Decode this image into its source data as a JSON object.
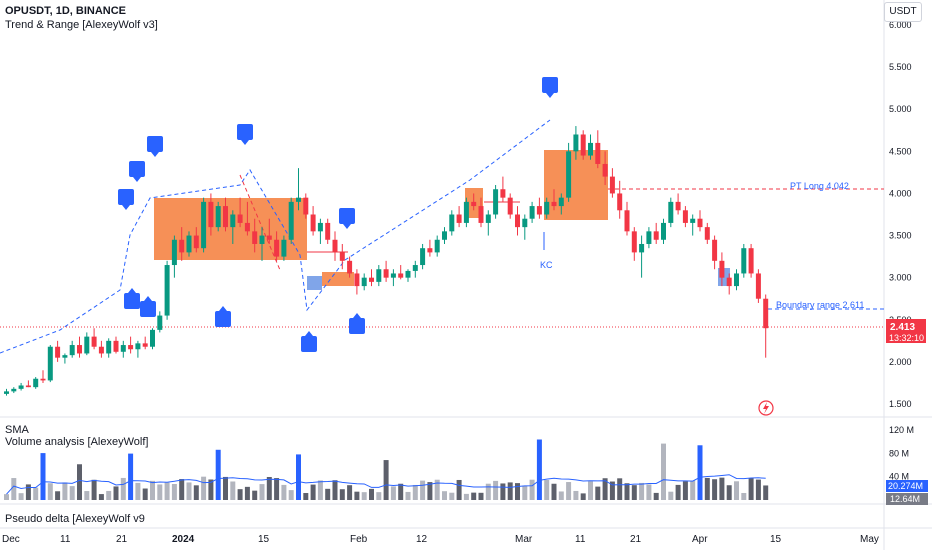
{
  "header": {
    "symbol_line": "OPUSDT, 1D, BINANCE",
    "indicator_line": "Trend & Range [AlexeyWolf v3]",
    "currency_button": "USDT"
  },
  "lower_panes": {
    "sma_label": "SMA",
    "volume_label": "Volume analysis [AlexeyWolf]",
    "delta_label": "Pseudo delta [AlexeyWolf v9"
  },
  "price_axis": {
    "ticks": [
      "6.000",
      "5.500",
      "5.000",
      "4.500",
      "4.000",
      "3.500",
      "3.000",
      "2.500",
      "2.000",
      "1.500"
    ],
    "last_price": "2.413",
    "countdown": "13:32:10",
    "last_price_color": "#f23645"
  },
  "volume_axis": {
    "ticks": [
      "120 M",
      "80 M",
      "40 M"
    ],
    "sma_value": "20.274M",
    "volume_value": "12.64M",
    "sma_color": "#2962ff"
  },
  "time_axis": {
    "ticks": [
      "Dec",
      "11",
      "21",
      "2024",
      "15",
      "Feb",
      "12",
      "Mar",
      "11",
      "21",
      "Apr",
      "15",
      "May"
    ]
  },
  "annotations": {
    "pt_long": "PT Long 4.042",
    "boundary": "Boundary range 2.611",
    "kc": "KC"
  },
  "colors": {
    "up": "#089981",
    "down": "#f23645",
    "range_box": "#f57c3a",
    "signal": "#2962ff"
  },
  "chart_data": {
    "type": "candlestick",
    "x_range": [
      "Dec",
      "May"
    ],
    "y_range": [
      1.4,
      6.1
    ],
    "log_scale": false,
    "grid": false,
    "ohlc_approx": [
      [
        1.62,
        1.68,
        1.6,
        1.65
      ],
      [
        1.65,
        1.7,
        1.63,
        1.68
      ],
      [
        1.68,
        1.75,
        1.66,
        1.72
      ],
      [
        1.72,
        1.78,
        1.7,
        1.7
      ],
      [
        1.7,
        1.82,
        1.68,
        1.8
      ],
      [
        1.8,
        1.9,
        1.75,
        1.78
      ],
      [
        1.78,
        2.2,
        1.76,
        2.18
      ],
      [
        2.18,
        2.25,
        2.0,
        2.05
      ],
      [
        2.05,
        2.1,
        1.98,
        2.08
      ],
      [
        2.08,
        2.25,
        2.05,
        2.2
      ],
      [
        2.2,
        2.3,
        2.05,
        2.1
      ],
      [
        2.1,
        2.35,
        2.08,
        2.3
      ],
      [
        2.3,
        2.4,
        2.15,
        2.18
      ],
      [
        2.18,
        2.25,
        2.05,
        2.1
      ],
      [
        2.1,
        2.28,
        2.05,
        2.25
      ],
      [
        2.25,
        2.3,
        2.1,
        2.12
      ],
      [
        2.12,
        2.25,
        2.05,
        2.2
      ],
      [
        2.2,
        2.3,
        2.1,
        2.15
      ],
      [
        2.15,
        2.25,
        2.05,
        2.22
      ],
      [
        2.22,
        2.3,
        2.15,
        2.18
      ],
      [
        2.18,
        2.4,
        2.15,
        2.38
      ],
      [
        2.38,
        2.6,
        2.35,
        2.55
      ],
      [
        2.55,
        3.2,
        2.5,
        3.15
      ],
      [
        3.15,
        3.5,
        3.0,
        3.45
      ],
      [
        3.45,
        3.6,
        3.2,
        3.3
      ],
      [
        3.3,
        3.55,
        3.25,
        3.5
      ],
      [
        3.5,
        3.6,
        3.3,
        3.35
      ],
      [
        3.35,
        3.95,
        3.3,
        3.9
      ],
      [
        3.9,
        4.0,
        3.5,
        3.6
      ],
      [
        3.6,
        3.9,
        3.55,
        3.85
      ],
      [
        3.85,
        3.95,
        3.55,
        3.6
      ],
      [
        3.6,
        3.8,
        3.4,
        3.75
      ],
      [
        3.75,
        3.95,
        3.6,
        3.65
      ],
      [
        3.65,
        3.9,
        3.5,
        3.55
      ],
      [
        3.55,
        3.7,
        3.3,
        3.4
      ],
      [
        3.4,
        3.6,
        3.2,
        3.5
      ],
      [
        3.5,
        3.7,
        3.4,
        3.45
      ],
      [
        3.45,
        3.55,
        3.2,
        3.25
      ],
      [
        3.25,
        3.5,
        3.2,
        3.45
      ],
      [
        3.45,
        3.95,
        3.4,
        3.9
      ],
      [
        3.9,
        4.3,
        3.8,
        3.95
      ],
      [
        3.95,
        4.0,
        3.7,
        3.75
      ],
      [
        3.75,
        3.85,
        3.5,
        3.55
      ],
      [
        3.55,
        3.7,
        3.4,
        3.65
      ],
      [
        3.65,
        3.7,
        3.4,
        3.45
      ],
      [
        3.45,
        3.55,
        3.2,
        3.3
      ],
      [
        3.3,
        3.4,
        3.1,
        3.2
      ],
      [
        3.2,
        3.25,
        3.0,
        3.05
      ],
      [
        3.05,
        3.1,
        2.8,
        2.9
      ],
      [
        2.9,
        3.05,
        2.85,
        3.0
      ],
      [
        3.0,
        3.1,
        2.9,
        2.95
      ],
      [
        2.95,
        3.15,
        2.9,
        3.1
      ],
      [
        3.1,
        3.2,
        2.95,
        3.0
      ],
      [
        3.0,
        3.1,
        2.9,
        3.05
      ],
      [
        3.05,
        3.15,
        2.98,
        3.0
      ],
      [
        3.0,
        3.1,
        2.95,
        3.08
      ],
      [
        3.08,
        3.2,
        3.0,
        3.15
      ],
      [
        3.15,
        3.4,
        3.1,
        3.35
      ],
      [
        3.35,
        3.45,
        3.25,
        3.3
      ],
      [
        3.3,
        3.5,
        3.25,
        3.45
      ],
      [
        3.45,
        3.6,
        3.4,
        3.55
      ],
      [
        3.55,
        3.8,
        3.5,
        3.75
      ],
      [
        3.75,
        3.85,
        3.6,
        3.65
      ],
      [
        3.65,
        3.95,
        3.6,
        3.9
      ],
      [
        3.9,
        4.0,
        3.8,
        3.85
      ],
      [
        3.85,
        3.95,
        3.6,
        3.65
      ],
      [
        3.65,
        3.8,
        3.5,
        3.75
      ],
      [
        3.75,
        4.1,
        3.7,
        4.05
      ],
      [
        4.05,
        4.2,
        3.9,
        3.95
      ],
      [
        3.95,
        4.0,
        3.7,
        3.75
      ],
      [
        3.75,
        3.85,
        3.5,
        3.6
      ],
      [
        3.6,
        3.75,
        3.45,
        3.7
      ],
      [
        3.7,
        3.9,
        3.65,
        3.85
      ],
      [
        3.85,
        3.95,
        3.7,
        3.75
      ],
      [
        3.75,
        3.95,
        3.7,
        3.9
      ],
      [
        3.9,
        4.05,
        3.8,
        3.85
      ],
      [
        3.85,
        4.0,
        3.75,
        3.95
      ],
      [
        3.95,
        4.6,
        3.9,
        4.5
      ],
      [
        4.5,
        4.8,
        4.4,
        4.7
      ],
      [
        4.7,
        4.75,
        4.4,
        4.45
      ],
      [
        4.45,
        4.7,
        4.4,
        4.6
      ],
      [
        4.6,
        4.75,
        4.3,
        4.35
      ],
      [
        4.35,
        4.5,
        4.1,
        4.2
      ],
      [
        4.2,
        4.3,
        3.95,
        4.0
      ],
      [
        4.0,
        4.15,
        3.7,
        3.8
      ],
      [
        3.8,
        3.9,
        3.5,
        3.55
      ],
      [
        3.55,
        3.6,
        3.2,
        3.3
      ],
      [
        3.3,
        3.5,
        3.0,
        3.4
      ],
      [
        3.4,
        3.6,
        3.35,
        3.55
      ],
      [
        3.55,
        3.65,
        3.4,
        3.45
      ],
      [
        3.45,
        3.7,
        3.4,
        3.65
      ],
      [
        3.65,
        3.95,
        3.6,
        3.9
      ],
      [
        3.9,
        4.0,
        3.75,
        3.8
      ],
      [
        3.8,
        3.85,
        3.6,
        3.65
      ],
      [
        3.65,
        3.75,
        3.5,
        3.7
      ],
      [
        3.7,
        3.8,
        3.55,
        3.6
      ],
      [
        3.6,
        3.65,
        3.4,
        3.45
      ],
      [
        3.45,
        3.5,
        3.1,
        3.2
      ],
      [
        3.2,
        3.3,
        2.9,
        3.0
      ],
      [
        3.0,
        3.05,
        2.8,
        2.9
      ],
      [
        2.9,
        3.1,
        2.85,
        3.05
      ],
      [
        3.05,
        3.4,
        3.0,
        3.35
      ],
      [
        3.35,
        3.4,
        3.0,
        3.05
      ],
      [
        3.05,
        3.1,
        2.7,
        2.75
      ],
      [
        2.75,
        2.8,
        2.05,
        2.4
      ]
    ]
  }
}
